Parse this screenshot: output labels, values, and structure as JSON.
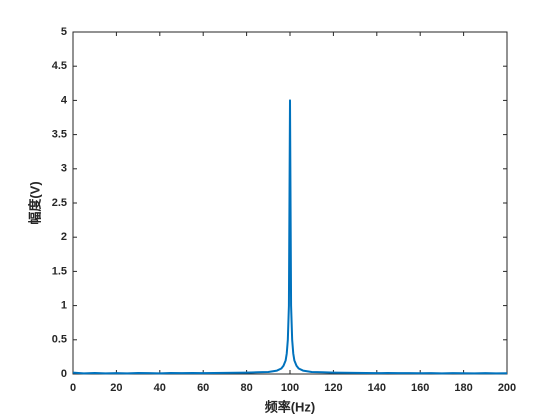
{
  "chart_data": {
    "type": "line",
    "xlabel": "频率(Hz)",
    "ylabel": "幅度(V)",
    "x": [
      0,
      5,
      10,
      15,
      20,
      25,
      30,
      35,
      40,
      45,
      50,
      55,
      60,
      65,
      70,
      75,
      80,
      85,
      90,
      94,
      96,
      97,
      98,
      98.5,
      99,
      99.5,
      100,
      100.5,
      101,
      101.5,
      102,
      103,
      104,
      106,
      110,
      115,
      120,
      125,
      130,
      135,
      140,
      145,
      150,
      155,
      160,
      165,
      170,
      175,
      180,
      185,
      190,
      195,
      200
    ],
    "series": [
      {
        "color": "#0072bd",
        "values": [
          0.02,
          0.01,
          0.015,
          0.01,
          0.012,
          0.01,
          0.015,
          0.012,
          0.01,
          0.014,
          0.012,
          0.015,
          0.013,
          0.015,
          0.017,
          0.018,
          0.02,
          0.025,
          0.03,
          0.05,
          0.08,
          0.12,
          0.2,
          0.3,
          0.5,
          1.0,
          4,
          1.0,
          0.5,
          0.3,
          0.2,
          0.12,
          0.08,
          0.05,
          0.03,
          0.025,
          0.02,
          0.018,
          0.016,
          0.015,
          0.013,
          0.014,
          0.012,
          0.013,
          0.011,
          0.012,
          0.01,
          0.012,
          0.011,
          0.01,
          0.012,
          0.01,
          0.011
        ]
      }
    ],
    "xlim": [
      0,
      200
    ],
    "xticks": [
      0,
      20,
      40,
      60,
      80,
      100,
      120,
      140,
      160,
      180,
      200
    ],
    "ylim": [
      0,
      5
    ],
    "yticks": [
      0,
      0.5,
      1,
      1.5,
      2,
      2.5,
      3,
      3.5,
      4,
      4.5,
      5
    ],
    "grid": false
  }
}
